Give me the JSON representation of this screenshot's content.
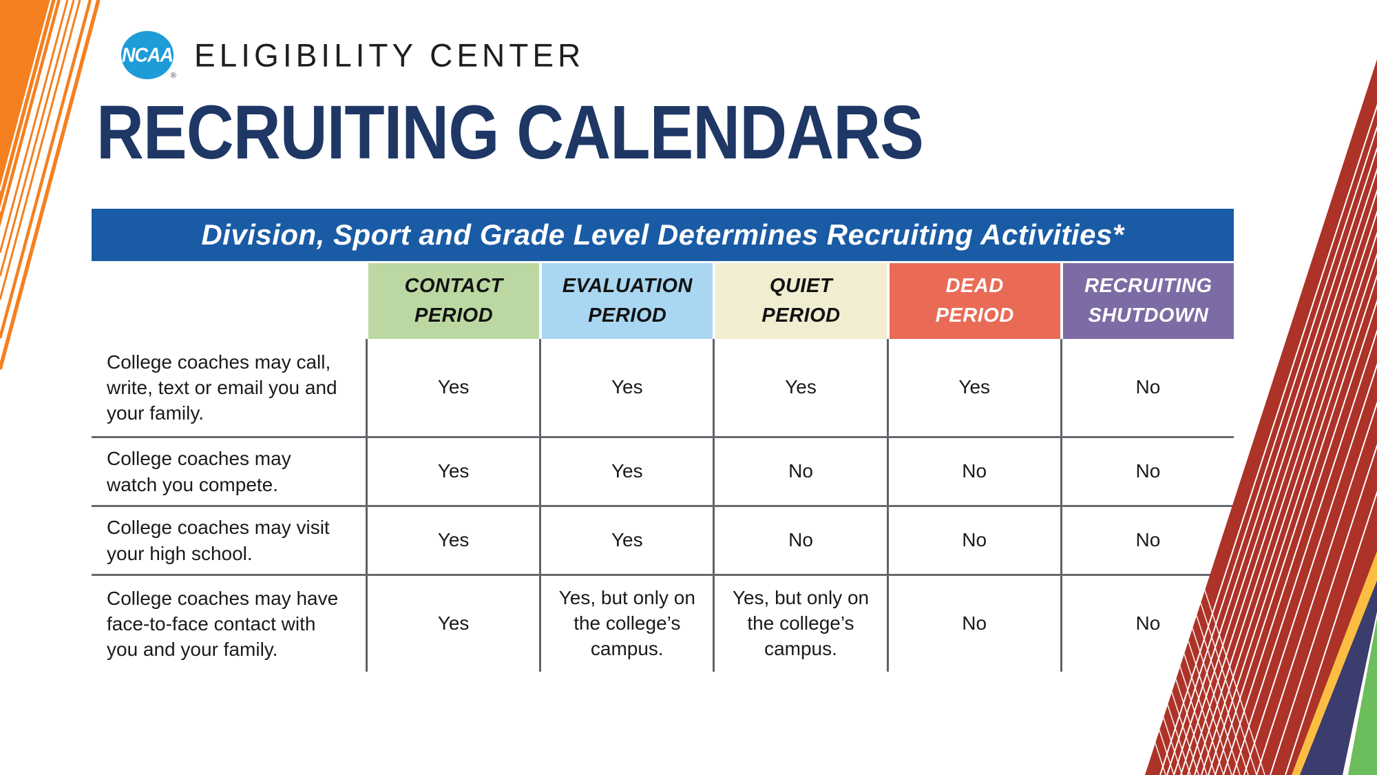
{
  "brand": {
    "logo": "NCAA",
    "registered": "®",
    "org_name": "ELIGIBILITY CENTER"
  },
  "page_title": "RECRUITING CALENDARS",
  "banner": {
    "text": "Division, Sport and Grade Level Determines Recruiting Activities*"
  },
  "table": {
    "columns": [
      {
        "line1": "CONTACT",
        "line2": "PERIOD",
        "bg": "#BCD8A2",
        "fg": "#121212"
      },
      {
        "line1": "EVALUATION",
        "line2": "PERIOD",
        "bg": "#A9D6F1",
        "fg": "#121212"
      },
      {
        "line1": "QUIET",
        "line2": "PERIOD",
        "bg": "#F1EDD1",
        "fg": "#121212"
      },
      {
        "line1": "DEAD",
        "line2": "PERIOD",
        "bg": "#E96B56",
        "fg": "#FFFFFF"
      },
      {
        "line1": "RECRUITING",
        "line2": "SHUTDOWN",
        "bg": "#7C6BA4",
        "fg": "#FFFFFF"
      }
    ],
    "rows": [
      {
        "label": "College coaches may call, write, text or email you and your family.",
        "values": [
          "Yes",
          "Yes",
          "Yes",
          "Yes",
          "No"
        ]
      },
      {
        "label": "College coaches may watch you compete.",
        "values": [
          "Yes",
          "Yes",
          "No",
          "No",
          "No"
        ]
      },
      {
        "label": "College coaches may visit your high school.",
        "values": [
          "Yes",
          "Yes",
          "No",
          "No",
          "No"
        ]
      },
      {
        "label": "College coaches may have face-to-face contact with you and your family.",
        "values": [
          "Yes",
          "Yes, but only on the college’s campus.",
          "Yes, but only on the college’s campus.",
          "No",
          "No"
        ]
      }
    ]
  },
  "colors": {
    "title_navy": "#1E3765",
    "banner_blue": "#1A5BA5",
    "ncaa_blue": "#1E9CD7",
    "accent_orange": "#F4801F",
    "stripe_red": "#AD3228",
    "corner_gold": "#FBBE42",
    "corner_navy": "#3A3D6E",
    "corner_green": "#6CBE5C",
    "grid_gray": "#5E6266"
  }
}
